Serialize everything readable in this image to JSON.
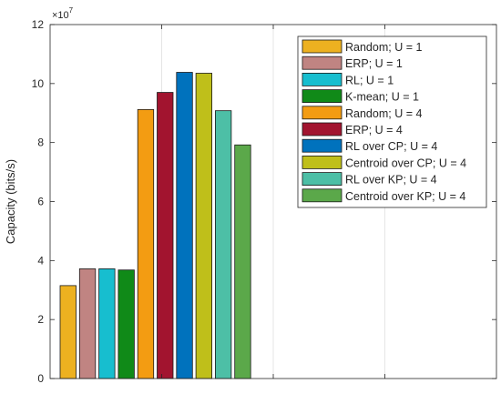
{
  "chart_data": {
    "type": "bar",
    "title": "",
    "xlabel": "",
    "ylabel": "Capacity (bits/s)",
    "y_exponent_label": "×10",
    "y_exponent_power": "7",
    "y_scale": 10000000,
    "ylim": [
      0,
      12
    ],
    "yticks": [
      "0",
      "2",
      "4",
      "6",
      "8",
      "10",
      "12"
    ],
    "grid": "vertical only",
    "legend_position": "top-right",
    "series": [
      {
        "name": "Random; U = 1",
        "value": 3.15,
        "color": "#EDB120"
      },
      {
        "name": "ERP; U = 1",
        "value": 3.72,
        "color": "#C08482"
      },
      {
        "name": "RL; U = 1",
        "value": 3.72,
        "color": "#17BECF"
      },
      {
        "name": "K-mean; U = 1",
        "value": 3.68,
        "color": "#108A18"
      },
      {
        "name": "Random; U = 4",
        "value": 9.12,
        "color": "#F39C12"
      },
      {
        "name": "ERP; U = 4",
        "value": 9.7,
        "color": "#A2142F"
      },
      {
        "name": "RL over CP; U = 4",
        "value": 10.38,
        "color": "#0072BD"
      },
      {
        "name": "Centroid over CP; U = 4",
        "value": 10.35,
        "color": "#BFBF1A"
      },
      {
        "name": "RL over KP; U = 4",
        "value": 9.08,
        "color": "#4DBFA6"
      },
      {
        "name": "Centroid over KP; U = 4",
        "value": 7.92,
        "color": "#5BA84A"
      }
    ]
  }
}
